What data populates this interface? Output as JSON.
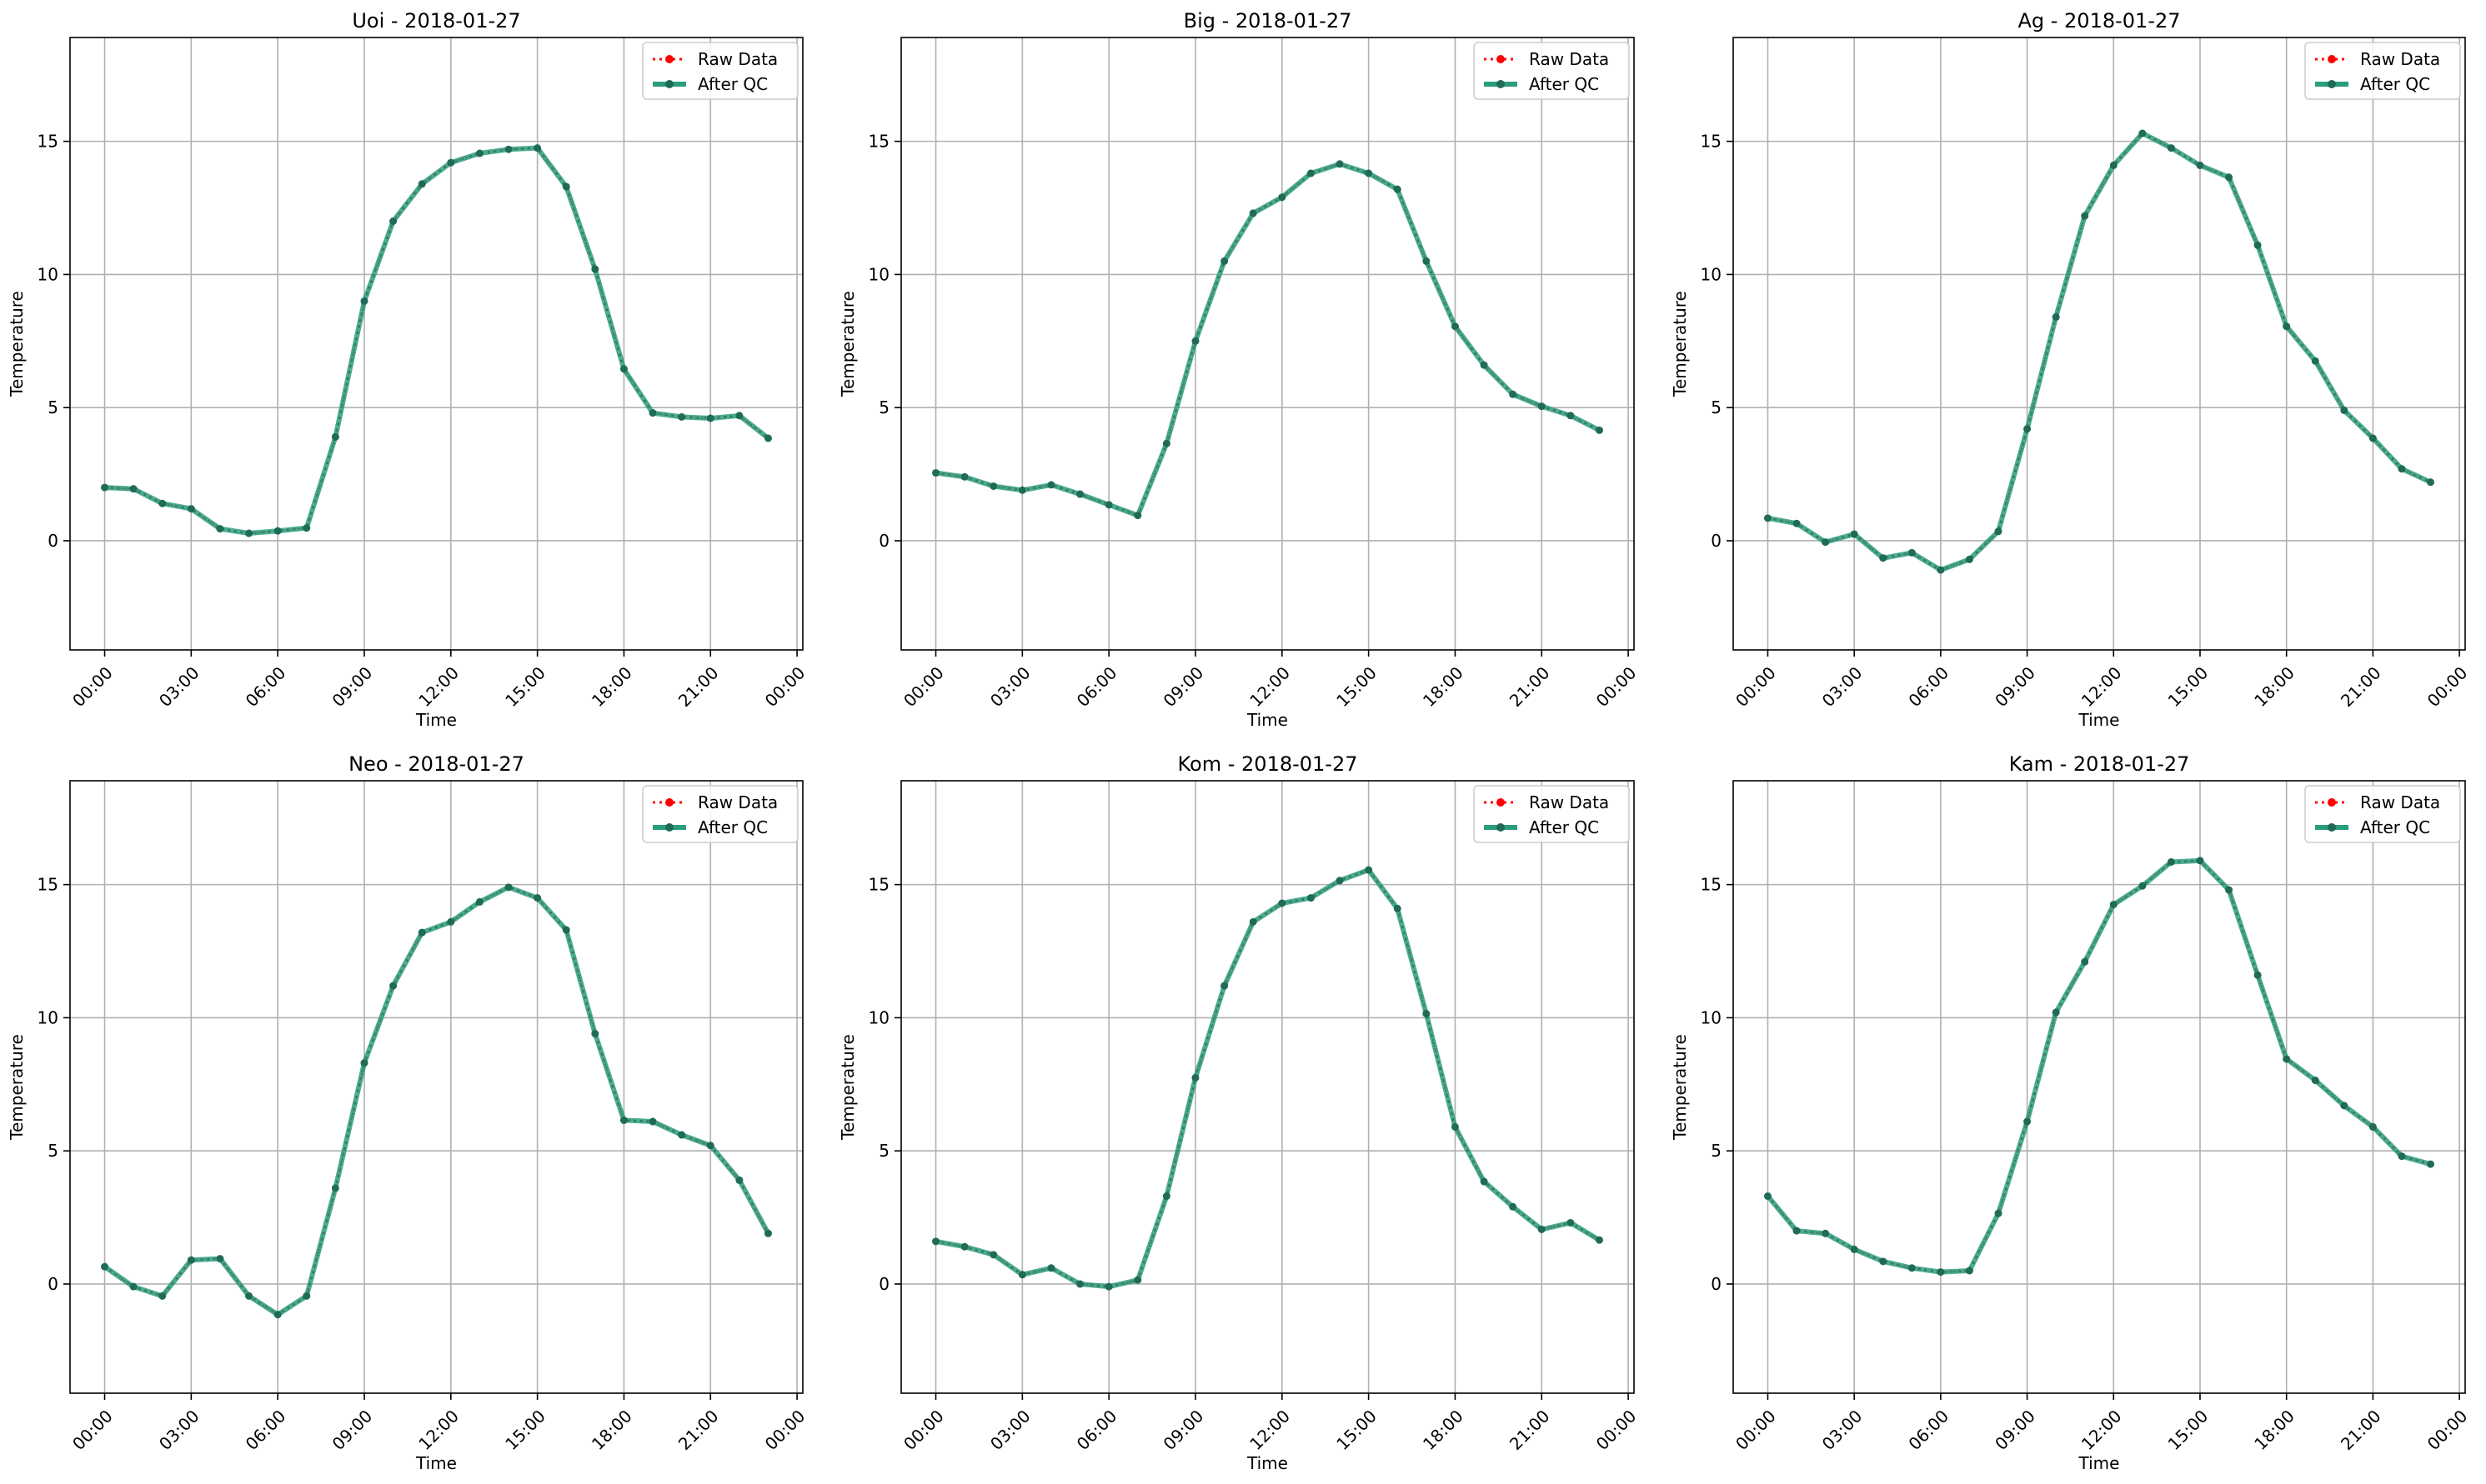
{
  "legend_labels": {
    "raw": "Raw Data",
    "qc": "After QC"
  },
  "colors": {
    "raw": "#ff0000",
    "qc": "#2a9d7c",
    "marker": "#1f6b57",
    "grid": "#b0b0b0",
    "axis": "#000000",
    "legend_border": "#cccccc"
  },
  "chart_data": [
    {
      "type": "line",
      "title": "Uoi - 2018-01-27",
      "xlabel": "Time",
      "ylabel": "Temperature",
      "x": [
        "00:00",
        "01:00",
        "02:00",
        "03:00",
        "04:00",
        "05:00",
        "06:00",
        "07:00",
        "08:00",
        "09:00",
        "10:00",
        "11:00",
        "12:00",
        "13:00",
        "14:00",
        "15:00",
        "16:00",
        "17:00",
        "18:00",
        "19:00",
        "20:00",
        "21:00",
        "22:00",
        "23:00"
      ],
      "series": [
        {
          "name": "Raw Data",
          "values": [
            2.0,
            1.95,
            1.4,
            1.2,
            0.45,
            0.28,
            0.37,
            0.48,
            3.9,
            9.0,
            12.0,
            13.4,
            14.2,
            14.55,
            14.7,
            14.75,
            13.3,
            10.2,
            6.45,
            4.8,
            4.65,
            4.6,
            4.7,
            3.85
          ]
        },
        {
          "name": "After QC",
          "values": [
            2.0,
            1.95,
            1.4,
            1.2,
            0.45,
            0.28,
            0.37,
            0.48,
            3.9,
            9.0,
            12.0,
            13.4,
            14.2,
            14.55,
            14.7,
            14.75,
            13.3,
            10.2,
            6.45,
            4.8,
            4.65,
            4.6,
            4.7,
            3.85
          ]
        }
      ],
      "xticks": [
        "00:00",
        "03:00",
        "06:00",
        "09:00",
        "12:00",
        "15:00",
        "18:00",
        "21:00",
        "00:00"
      ],
      "yticks": [
        0,
        5,
        10,
        15
      ],
      "xlim": [
        -1.2,
        24.2
      ],
      "ylim": [
        -4.1,
        18.9
      ],
      "grid": true,
      "legend_position": "top-right"
    },
    {
      "type": "line",
      "title": "Big - 2018-01-27",
      "xlabel": "Time",
      "ylabel": "Temperature",
      "x": [
        "00:00",
        "01:00",
        "02:00",
        "03:00",
        "04:00",
        "05:00",
        "06:00",
        "07:00",
        "08:00",
        "09:00",
        "10:00",
        "11:00",
        "12:00",
        "13:00",
        "14:00",
        "15:00",
        "16:00",
        "17:00",
        "18:00",
        "19:00",
        "20:00",
        "21:00",
        "22:00",
        "23:00"
      ],
      "series": [
        {
          "name": "Raw Data",
          "values": [
            2.55,
            2.4,
            2.05,
            1.9,
            2.1,
            1.75,
            1.35,
            0.95,
            3.65,
            7.5,
            10.5,
            12.3,
            12.9,
            13.8,
            14.15,
            13.8,
            13.2,
            10.5,
            8.05,
            6.6,
            5.5,
            5.05,
            4.7,
            4.15
          ]
        },
        {
          "name": "After QC",
          "values": [
            2.55,
            2.4,
            2.05,
            1.9,
            2.1,
            1.75,
            1.35,
            0.95,
            3.65,
            7.5,
            10.5,
            12.3,
            12.9,
            13.8,
            14.15,
            13.8,
            13.2,
            10.5,
            8.05,
            6.6,
            5.5,
            5.05,
            4.7,
            4.15
          ]
        }
      ],
      "xticks": [
        "00:00",
        "03:00",
        "06:00",
        "09:00",
        "12:00",
        "15:00",
        "18:00",
        "21:00",
        "00:00"
      ],
      "yticks": [
        0,
        5,
        10,
        15
      ],
      "xlim": [
        -1.2,
        24.2
      ],
      "ylim": [
        -4.1,
        18.9
      ],
      "grid": true,
      "legend_position": "top-right"
    },
    {
      "type": "line",
      "title": "Ag - 2018-01-27",
      "xlabel": "Time",
      "ylabel": "Temperature",
      "x": [
        "00:00",
        "01:00",
        "02:00",
        "03:00",
        "04:00",
        "05:00",
        "06:00",
        "07:00",
        "08:00",
        "09:00",
        "10:00",
        "11:00",
        "12:00",
        "13:00",
        "14:00",
        "15:00",
        "16:00",
        "17:00",
        "18:00",
        "19:00",
        "20:00",
        "21:00",
        "22:00",
        "23:00"
      ],
      "series": [
        {
          "name": "Raw Data",
          "values": [
            0.85,
            0.65,
            -0.05,
            0.25,
            -0.65,
            -0.45,
            -1.1,
            -0.7,
            0.35,
            4.2,
            8.4,
            12.2,
            14.1,
            15.3,
            14.75,
            14.1,
            13.65,
            11.1,
            8.05,
            6.75,
            4.9,
            3.85,
            2.7,
            2.2
          ]
        },
        {
          "name": "After QC",
          "values": [
            0.85,
            0.65,
            -0.05,
            0.25,
            -0.65,
            -0.45,
            -1.1,
            -0.7,
            0.35,
            4.2,
            8.4,
            12.2,
            14.1,
            15.3,
            14.75,
            14.1,
            13.65,
            11.1,
            8.05,
            6.75,
            4.9,
            3.85,
            2.7,
            2.2
          ]
        }
      ],
      "xticks": [
        "00:00",
        "03:00",
        "06:00",
        "09:00",
        "12:00",
        "15:00",
        "18:00",
        "21:00",
        "00:00"
      ],
      "yticks": [
        0,
        5,
        10,
        15
      ],
      "xlim": [
        -1.2,
        24.2
      ],
      "ylim": [
        -4.1,
        18.9
      ],
      "grid": true,
      "legend_position": "top-right"
    },
    {
      "type": "line",
      "title": "Neo - 2018-01-27",
      "xlabel": "Time",
      "ylabel": "Temperature",
      "x": [
        "00:00",
        "01:00",
        "02:00",
        "03:00",
        "04:00",
        "05:00",
        "06:00",
        "07:00",
        "08:00",
        "09:00",
        "10:00",
        "11:00",
        "12:00",
        "13:00",
        "14:00",
        "15:00",
        "16:00",
        "17:00",
        "18:00",
        "19:00",
        "20:00",
        "21:00",
        "22:00",
        "23:00"
      ],
      "series": [
        {
          "name": "Raw Data",
          "values": [
            0.65,
            -0.1,
            -0.45,
            0.9,
            0.95,
            -0.45,
            -1.15,
            -0.45,
            3.6,
            8.3,
            11.2,
            13.2,
            13.6,
            14.35,
            14.9,
            14.5,
            13.3,
            9.4,
            6.15,
            6.1,
            5.6,
            5.2,
            3.9,
            1.9
          ]
        },
        {
          "name": "After QC",
          "values": [
            0.65,
            -0.1,
            -0.45,
            0.9,
            0.95,
            -0.45,
            -1.15,
            -0.45,
            3.6,
            8.3,
            11.2,
            13.2,
            13.6,
            14.35,
            14.9,
            14.5,
            13.3,
            9.4,
            6.15,
            6.1,
            5.6,
            5.2,
            3.9,
            1.9
          ]
        }
      ],
      "xticks": [
        "00:00",
        "03:00",
        "06:00",
        "09:00",
        "12:00",
        "15:00",
        "18:00",
        "21:00",
        "00:00"
      ],
      "yticks": [
        0,
        5,
        10,
        15
      ],
      "xlim": [
        -1.2,
        24.2
      ],
      "ylim": [
        -4.1,
        18.9
      ],
      "grid": true,
      "legend_position": "top-right"
    },
    {
      "type": "line",
      "title": "Kom - 2018-01-27",
      "xlabel": "Time",
      "ylabel": "Temperature",
      "x": [
        "00:00",
        "01:00",
        "02:00",
        "03:00",
        "04:00",
        "05:00",
        "06:00",
        "07:00",
        "08:00",
        "09:00",
        "10:00",
        "11:00",
        "12:00",
        "13:00",
        "14:00",
        "15:00",
        "16:00",
        "17:00",
        "18:00",
        "19:00",
        "20:00",
        "21:00",
        "22:00",
        "23:00"
      ],
      "series": [
        {
          "name": "Raw Data",
          "values": [
            1.6,
            1.4,
            1.1,
            0.35,
            0.6,
            0.0,
            -0.1,
            0.15,
            3.3,
            7.75,
            11.2,
            13.6,
            14.3,
            14.5,
            15.15,
            15.55,
            14.1,
            10.15,
            5.9,
            3.85,
            2.9,
            2.05,
            2.3,
            1.65
          ]
        },
        {
          "name": "After QC",
          "values": [
            1.6,
            1.4,
            1.1,
            0.35,
            0.6,
            0.0,
            -0.1,
            0.15,
            3.3,
            7.75,
            11.2,
            13.6,
            14.3,
            14.5,
            15.15,
            15.55,
            14.1,
            10.15,
            5.9,
            3.85,
            2.9,
            2.05,
            2.3,
            1.65
          ]
        }
      ],
      "xticks": [
        "00:00",
        "03:00",
        "06:00",
        "09:00",
        "12:00",
        "15:00",
        "18:00",
        "21:00",
        "00:00"
      ],
      "yticks": [
        0,
        5,
        10,
        15
      ],
      "xlim": [
        -1.2,
        24.2
      ],
      "ylim": [
        -4.1,
        18.9
      ],
      "grid": true,
      "legend_position": "top-right"
    },
    {
      "type": "line",
      "title": "Kam - 2018-01-27",
      "xlabel": "Time",
      "ylabel": "Temperature",
      "x": [
        "00:00",
        "01:00",
        "02:00",
        "03:00",
        "04:00",
        "05:00",
        "06:00",
        "07:00",
        "08:00",
        "09:00",
        "10:00",
        "11:00",
        "12:00",
        "13:00",
        "14:00",
        "15:00",
        "16:00",
        "17:00",
        "18:00",
        "19:00",
        "20:00",
        "21:00",
        "22:00",
        "23:00"
      ],
      "series": [
        {
          "name": "Raw Data",
          "values": [
            3.3,
            2.0,
            1.9,
            1.3,
            0.85,
            0.6,
            0.45,
            0.5,
            2.65,
            6.1,
            10.2,
            12.1,
            14.25,
            14.95,
            15.85,
            15.9,
            14.8,
            11.6,
            8.45,
            7.65,
            6.7,
            5.9,
            4.8,
            4.5
          ]
        },
        {
          "name": "After QC",
          "values": [
            3.3,
            2.0,
            1.9,
            1.3,
            0.85,
            0.6,
            0.45,
            0.5,
            2.65,
            6.1,
            10.2,
            12.1,
            14.25,
            14.95,
            15.85,
            15.9,
            14.8,
            11.6,
            8.45,
            7.65,
            6.7,
            5.9,
            4.8,
            4.5
          ]
        }
      ],
      "xticks": [
        "00:00",
        "03:00",
        "06:00",
        "09:00",
        "12:00",
        "15:00",
        "18:00",
        "21:00",
        "00:00"
      ],
      "yticks": [
        0,
        5,
        10,
        15
      ],
      "xlim": [
        -1.2,
        24.2
      ],
      "ylim": [
        -4.1,
        18.9
      ],
      "grid": true,
      "legend_position": "top-right"
    }
  ]
}
